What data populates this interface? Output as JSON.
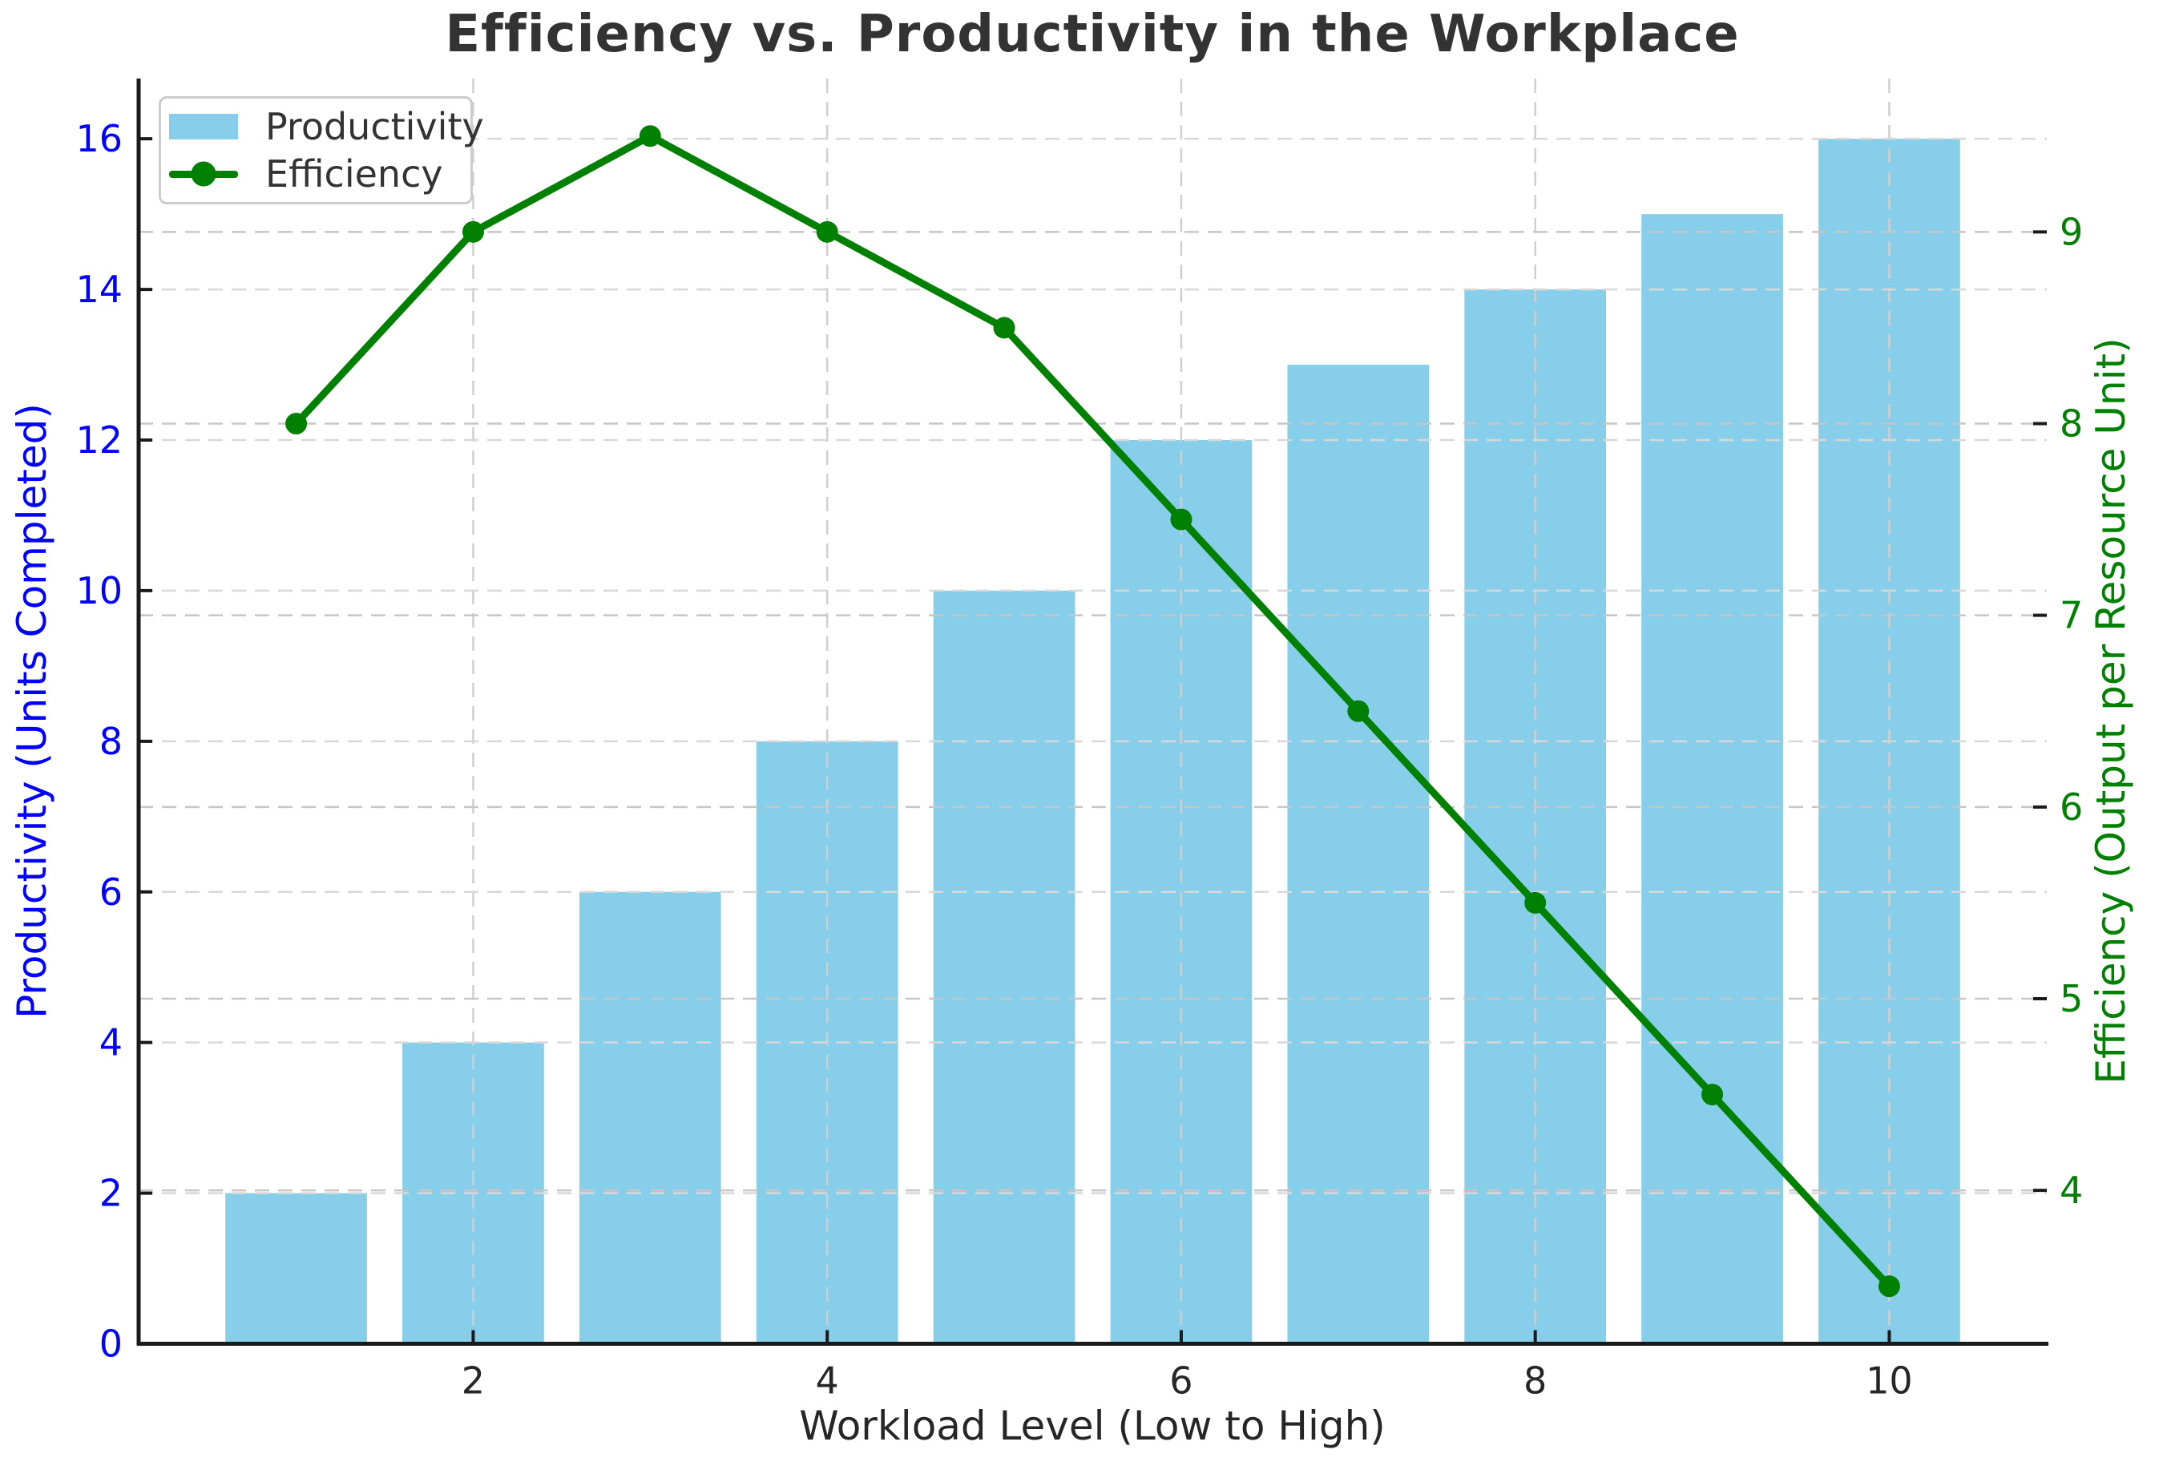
{
  "figure": {
    "title": "Efficiency vs. Productivity in the Workplace"
  },
  "chart_data": {
    "type": "combo",
    "subtypes": [
      "bar",
      "line"
    ],
    "title": "Efficiency vs. Productivity in the Workplace",
    "xlabel": "Workload Level (Low to High)",
    "ylabel_left": "Productivity (Units Completed)",
    "ylabel_right": "Efficiency (Output per Resource Unit)",
    "x": [
      1,
      2,
      3,
      4,
      5,
      6,
      7,
      8,
      9,
      10
    ],
    "series": [
      {
        "name": "Productivity",
        "type": "bar",
        "axis": "left",
        "color": "#87CEEB",
        "values": [
          2,
          4,
          6,
          8,
          10,
          12,
          13,
          14,
          15,
          16
        ]
      },
      {
        "name": "Efficiency",
        "type": "line",
        "axis": "right",
        "color": "#008000",
        "marker": "circle",
        "values": [
          8.0,
          9.0,
          9.5,
          9.0,
          8.5,
          7.5,
          6.5,
          5.5,
          4.5,
          3.5
        ]
      }
    ],
    "x_axis": {
      "ticks": [
        2,
        4,
        6,
        8,
        10
      ],
      "range": [
        0.11,
        10.89
      ],
      "tick_label_color": "#262626"
    },
    "left_axis": {
      "ticks": [
        0,
        2,
        4,
        6,
        8,
        10,
        12,
        14,
        16
      ],
      "range": [
        0,
        16.8
      ],
      "tick_label_color": "#0000ff"
    },
    "right_axis": {
      "ticks": [
        4,
        5,
        6,
        7,
        8,
        9
      ],
      "range": [
        3.2,
        9.8
      ],
      "tick_label_color": "#008000"
    },
    "bar_width": 0.8,
    "grid": {
      "show": true,
      "style": "dashed"
    },
    "legend": {
      "position": "upper left"
    }
  },
  "colors": {
    "bar": "#87CEEB",
    "line": "#008000",
    "title": "#333333",
    "xtick_labels": "#262626",
    "left_axis_text": "#0000ff",
    "right_axis_text": "#008000",
    "spine": "#1a1a1a",
    "grid_left": "#d8d8d8",
    "grid_right": "#c6c6c6",
    "grid_x": "#cfcfcf"
  }
}
